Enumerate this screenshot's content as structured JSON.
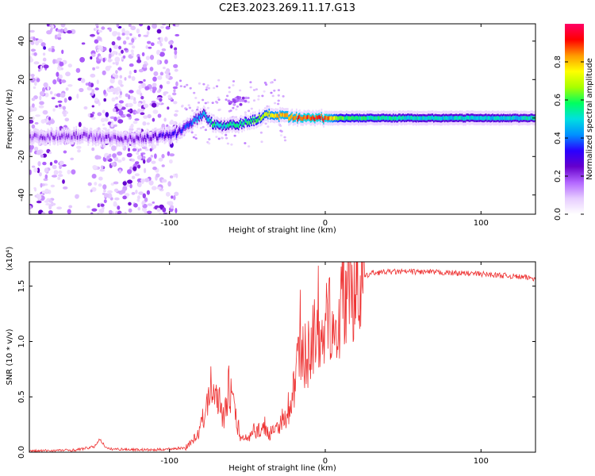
{
  "title": "C2E3.2023.269.11.17.G13",
  "chart_data": [
    {
      "type": "heatmap",
      "xlabel": "Height of straight line (km)",
      "ylabel": "Frequency (Hz)",
      "xlim": [
        -190,
        135
      ],
      "ylim": [
        -50,
        49
      ],
      "x_ticks": [
        -100,
        0,
        100
      ],
      "y_ticks": [
        -40,
        -20,
        0,
        20,
        40
      ],
      "colorbar": {
        "label": "Normalized spectral amplitude",
        "range": [
          0,
          1
        ],
        "ticks": [
          "0.0",
          "0.2",
          "0.4",
          "0.6",
          "0.8"
        ],
        "colormap": [
          "#ffffff",
          "#e6ccff",
          "#b366ff",
          "#6600cc",
          "#2a00ff",
          "#0090ff",
          "#00e0e0",
          "#00ff60",
          "#a8ff00",
          "#ffff00",
          "#ff9900",
          "#ff0000",
          "#ff0066"
        ]
      },
      "ridge": {
        "x": [
          -190,
          -160,
          -130,
          -110,
          -95,
          -85,
          -78,
          -72,
          -65,
          -55,
          -45,
          -35,
          -30,
          -20,
          -10,
          0,
          10,
          30,
          60,
          100,
          135
        ],
        "y": [
          -10,
          -9,
          -11,
          -10,
          -8,
          -2,
          2,
          -3,
          -4,
          -3,
          -1,
          2,
          1,
          0,
          0,
          0,
          0,
          0,
          0,
          0,
          0
        ],
        "intensity": [
          0.18,
          0.2,
          0.2,
          0.25,
          0.3,
          0.4,
          0.45,
          0.55,
          0.5,
          0.55,
          0.6,
          0.75,
          0.8,
          0.85,
          0.9,
          0.9,
          0.6,
          0.55,
          0.5,
          0.5,
          0.5
        ]
      },
      "noise_region": [
        -190,
        -95
      ]
    },
    {
      "type": "line",
      "xlabel": "Height of straight line (km)",
      "ylabel": "SNR (10 * v/v)",
      "yscale_label": "(x10⁴)",
      "xlim": [
        -190,
        135
      ],
      "ylim": [
        0,
        1.72
      ],
      "x_ticks": [
        -100,
        0,
        100
      ],
      "y_ticks": [
        "0.0",
        "0.5",
        "1.0",
        "1.5"
      ],
      "series": [
        {
          "color": "#ee3333",
          "x": [
            -190,
            -160,
            -148,
            -145,
            -140,
            -110,
            -90,
            -82,
            -75,
            -72,
            -70,
            -68,
            -65,
            -62,
            -58,
            -55,
            -50,
            -45,
            -40,
            -35,
            -30,
            -25,
            -22,
            -20,
            -18,
            -15,
            -12,
            -10,
            -8,
            -5,
            0,
            3,
            5,
            8,
            10,
            12,
            15,
            20,
            25,
            30,
            40,
            60,
            80,
            100,
            120,
            135
          ],
          "y": [
            0.01,
            0.02,
            0.05,
            0.12,
            0.03,
            0.02,
            0.04,
            0.15,
            0.45,
            0.7,
            0.55,
            0.45,
            0.3,
            0.6,
            0.35,
            0.15,
            0.12,
            0.18,
            0.22,
            0.15,
            0.25,
            0.3,
            0.35,
            0.6,
            0.8,
            0.9,
            0.85,
            0.95,
            1.05,
            1.0,
            1.1,
            1.25,
            1.3,
            1.0,
            1.35,
            1.45,
            1.5,
            1.55,
            1.58,
            1.62,
            1.63,
            1.63,
            1.62,
            1.61,
            1.59,
            1.57
          ]
        }
      ]
    }
  ]
}
